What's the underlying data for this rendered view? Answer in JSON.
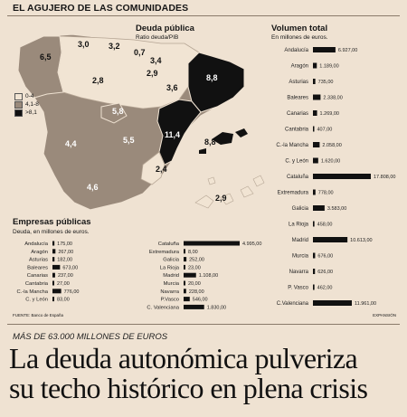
{
  "header": {
    "section_title": "EL AGUJERO DE LAS COMUNIDADES"
  },
  "map": {
    "title": "Deuda pública",
    "subtitle": "Ratio deuda/PIB",
    "legend": [
      {
        "label": "0-4",
        "color": "#f1e4d3"
      },
      {
        "label": "4,1-8",
        "color": "#9a8a7b"
      },
      {
        "label": ">8,1",
        "color": "#111111"
      }
    ],
    "values": [
      {
        "region": "Galicia",
        "value": "6,5"
      },
      {
        "region": "Asturias",
        "value": "3,0"
      },
      {
        "region": "Cantabria",
        "value": "3,2"
      },
      {
        "region": "País Vasco",
        "value": "0,7"
      },
      {
        "region": "Navarra",
        "value": "3,4"
      },
      {
        "region": "Cataluña",
        "value": "8,8"
      },
      {
        "region": "Castilla y León",
        "value": "2,8"
      },
      {
        "region": "La Rioja",
        "value": "2,9"
      },
      {
        "region": "Aragón",
        "value": "3,6"
      },
      {
        "region": "Madrid",
        "value": "5,8"
      },
      {
        "region": "Extremadura",
        "value": "4,4"
      },
      {
        "region": "Castilla-La Mancha",
        "value": "5,5"
      },
      {
        "region": "C. Valenciana",
        "value": "11,4"
      },
      {
        "region": "Baleares",
        "value": "8,8"
      },
      {
        "region": "Murcia",
        "value": "2,4"
      },
      {
        "region": "Andalucía",
        "value": "4,6"
      },
      {
        "region": "Canarias",
        "value": "2,9"
      }
    ]
  },
  "chart_data": [
    {
      "type": "bar",
      "title": "Volumen total",
      "subtitle": "En millones de euros.",
      "orientation": "horizontal",
      "categories": [
        "Andalucía",
        "Aragón",
        "Asturias",
        "Baleares",
        "Canarias",
        "Cantabria",
        "C.-la Mancha",
        "C. y León",
        "Cataluña",
        "Extremadura",
        "Galicia",
        "La Rioja",
        "Madrid",
        "Murcia",
        "Navarra",
        "P. Vasco",
        "C.Valenciana"
      ],
      "values": [
        6927,
        1189,
        735,
        2338,
        1269,
        407,
        2058,
        1620,
        17808,
        778,
        3583,
        458,
        10613,
        676,
        626,
        462,
        11961
      ],
      "labels": [
        "6.927,00",
        "1.189,00",
        "735,00",
        "2.338,00",
        "1.269,00",
        "407,00",
        "2.058,00",
        "1.620,00",
        "17.808,00",
        "778,00",
        "3.583,00",
        "458,00",
        "10.613,00",
        "676,00",
        "626,00",
        "462,00",
        "11.961,00"
      ]
    },
    {
      "type": "bar",
      "title": "Empresas públicas",
      "subtitle": "Deuda, en millones de euros.",
      "orientation": "horizontal",
      "categories": [
        "Andalucía",
        "Aragón",
        "Asturias",
        "Baleares",
        "Canarias",
        "Cantabria",
        "C.-la Mancha",
        "C. y León",
        "Cataluña",
        "Extremadura",
        "Galicia",
        "La Rioja",
        "Madrid",
        "Murcia",
        "Navarra",
        "P.Vasco",
        "C. Valenciana"
      ],
      "values": [
        175,
        267,
        182,
        673,
        237,
        27,
        776,
        83,
        4995,
        8,
        252,
        23,
        1108,
        20,
        228,
        546,
        1830
      ],
      "labels": [
        "175,00",
        "267,00",
        "182,00",
        "673,00",
        "237,00",
        "27,00",
        "776,00",
        "83,00",
        "4.995,00",
        "8,00",
        "252,00",
        "23,00",
        "1.108,00",
        "20,00",
        "228,00",
        "546,00",
        "1.830,00"
      ]
    }
  ],
  "footer": {
    "source": "FUENTE: Banco de España",
    "credit": "EXPANSIÓN"
  },
  "article": {
    "kicker": "MÁS DE 63.000 MILLONES DE EUROS",
    "headline_line1": "La deuda autonómica pulveriza",
    "headline_line2": "su techo histórico en plena crisis"
  }
}
